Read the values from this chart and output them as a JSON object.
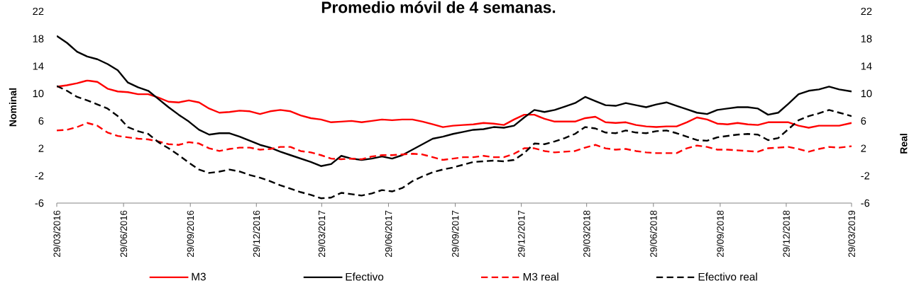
{
  "chart_data": {
    "type": "line",
    "title": "Promedio móvil de 4 semanas.",
    "ylabel": "Nominal",
    "y2label": "Real",
    "x": [
      "2016-03-29",
      "2016-04-12",
      "2016-04-26",
      "2016-05-10",
      "2016-05-24",
      "2016-06-07",
      "2016-06-21",
      "2016-07-05",
      "2016-07-19",
      "2016-08-02",
      "2016-08-16",
      "2016-08-30",
      "2016-09-13",
      "2016-09-27",
      "2016-10-11",
      "2016-10-25",
      "2016-11-08",
      "2016-11-22",
      "2016-12-06",
      "2016-12-20",
      "2017-01-03",
      "2017-01-17",
      "2017-01-31",
      "2017-02-14",
      "2017-02-28",
      "2017-03-14",
      "2017-03-28",
      "2017-04-11",
      "2017-04-25",
      "2017-05-09",
      "2017-05-23",
      "2017-06-06",
      "2017-06-20",
      "2017-07-04",
      "2017-07-18",
      "2017-08-01",
      "2017-08-15",
      "2017-08-29",
      "2017-09-12",
      "2017-09-26",
      "2017-10-10",
      "2017-10-24",
      "2017-11-07",
      "2017-11-21",
      "2017-12-05",
      "2017-12-19",
      "2018-01-02",
      "2018-01-16",
      "2018-01-30",
      "2018-02-13",
      "2018-02-27",
      "2018-03-13",
      "2018-03-27",
      "2018-04-10",
      "2018-04-24",
      "2018-05-08",
      "2018-05-22",
      "2018-06-05",
      "2018-06-19",
      "2018-07-03",
      "2018-07-17",
      "2018-07-31",
      "2018-08-14",
      "2018-08-28",
      "2018-09-11",
      "2018-09-25",
      "2018-10-09",
      "2018-10-23",
      "2018-11-06",
      "2018-11-20",
      "2018-12-04",
      "2018-12-18",
      "2019-01-01",
      "2019-01-15",
      "2019-01-29",
      "2019-02-12",
      "2019-02-26",
      "2019-03-12",
      "2019-03-29"
    ],
    "xlim": [
      "2016-03-29",
      "2019-03-29"
    ],
    "xticks": [
      {
        "value": "2016-03-29",
        "label": "29/03/2016"
      },
      {
        "value": "2016-06-29",
        "label": "29/06/2016"
      },
      {
        "value": "2016-09-29",
        "label": "29/09/2016"
      },
      {
        "value": "2016-12-29",
        "label": "29/12/2016"
      },
      {
        "value": "2017-03-29",
        "label": "29/03/2017"
      },
      {
        "value": "2017-06-29",
        "label": "29/06/2017"
      },
      {
        "value": "2017-09-29",
        "label": "29/09/2017"
      },
      {
        "value": "2017-12-29",
        "label": "29/12/2017"
      },
      {
        "value": "2018-03-29",
        "label": "29/03/2018"
      },
      {
        "value": "2018-06-29",
        "label": "29/06/2018"
      },
      {
        "value": "2018-09-29",
        "label": "29/09/2018"
      },
      {
        "value": "2018-12-29",
        "label": "29/12/2018"
      },
      {
        "value": "2019-03-29",
        "label": "29/03/2019"
      }
    ],
    "ylim": [
      -6,
      22
    ],
    "yticks": [
      -6,
      -2,
      2,
      6,
      10,
      14,
      18,
      22
    ],
    "y2lim": [
      -6,
      22
    ],
    "y2ticks": [
      -6,
      -2,
      2,
      6,
      10,
      14,
      18,
      22
    ],
    "legend": "bottom",
    "series": [
      {
        "name": "M3",
        "color": "#ff0000",
        "line_style": "solid",
        "values": [
          11.0,
          11.2,
          11.5,
          11.9,
          11.7,
          10.7,
          10.3,
          10.2,
          9.9,
          9.9,
          9.4,
          8.8,
          8.7,
          9.0,
          8.7,
          7.8,
          7.2,
          7.3,
          7.5,
          7.4,
          7.0,
          7.4,
          7.6,
          7.4,
          6.8,
          6.4,
          6.2,
          5.8,
          5.9,
          6.0,
          5.8,
          6.0,
          6.2,
          6.1,
          6.2,
          6.2,
          5.9,
          5.5,
          5.1,
          5.3,
          5.4,
          5.5,
          5.7,
          5.6,
          5.4,
          6.2,
          6.9,
          6.9,
          6.3,
          5.9,
          5.9,
          5.9,
          6.4,
          6.6,
          5.8,
          5.7,
          5.8,
          5.4,
          5.2,
          5.1,
          5.2,
          5.2,
          5.8,
          6.5,
          6.2,
          5.6,
          5.5,
          5.7,
          5.5,
          5.4,
          5.8,
          5.8,
          5.8,
          5.3,
          5.0,
          5.3,
          5.3,
          5.3,
          5.7
        ]
      },
      {
        "name": "Efectivo",
        "color": "#000000",
        "line_style": "solid",
        "values": [
          18.4,
          17.4,
          16.1,
          15.4,
          15.0,
          14.3,
          13.4,
          11.6,
          10.9,
          10.4,
          9.2,
          8.0,
          6.9,
          5.9,
          4.7,
          4.0,
          4.2,
          4.2,
          3.7,
          3.1,
          2.5,
          2.1,
          1.5,
          1.0,
          0.5,
          0.0,
          -0.6,
          -0.3,
          0.9,
          0.5,
          0.3,
          0.5,
          0.8,
          0.5,
          1.0,
          1.8,
          2.6,
          3.4,
          3.7,
          4.1,
          4.4,
          4.7,
          4.8,
          5.1,
          5.0,
          5.3,
          6.5,
          7.6,
          7.3,
          7.6,
          8.1,
          8.6,
          9.5,
          8.9,
          8.3,
          8.2,
          8.6,
          8.3,
          8.0,
          8.4,
          8.7,
          8.2,
          7.7,
          7.2,
          7.0,
          7.6,
          7.8,
          8.0,
          8.0,
          7.8,
          6.9,
          7.2,
          8.5,
          9.9,
          10.4,
          10.6,
          11.0,
          10.6,
          10.3
        ]
      },
      {
        "name": "M3 real",
        "color": "#ff0000",
        "line_style": "dashed",
        "axis": "y2",
        "values": [
          4.6,
          4.7,
          5.1,
          5.7,
          5.3,
          4.3,
          3.8,
          3.6,
          3.4,
          3.3,
          3.0,
          2.6,
          2.5,
          2.9,
          2.7,
          2.0,
          1.6,
          1.9,
          2.1,
          2.1,
          1.8,
          1.9,
          2.2,
          2.2,
          1.6,
          1.4,
          1.0,
          0.5,
          0.4,
          0.5,
          0.4,
          0.8,
          1.0,
          1.0,
          1.1,
          1.2,
          1.1,
          0.7,
          0.3,
          0.5,
          0.7,
          0.7,
          0.9,
          0.7,
          0.7,
          1.2,
          2.0,
          2.0,
          1.6,
          1.4,
          1.5,
          1.6,
          2.1,
          2.5,
          2.0,
          1.8,
          1.9,
          1.6,
          1.4,
          1.3,
          1.3,
          1.3,
          2.0,
          2.4,
          2.2,
          1.8,
          1.8,
          1.7,
          1.6,
          1.5,
          2.0,
          2.1,
          2.2,
          1.9,
          1.5,
          1.9,
          2.2,
          2.1,
          2.3
        ]
      },
      {
        "name": "Efectivo real",
        "color": "#000000",
        "line_style": "dashed",
        "axis": "y2",
        "values": [
          11.1,
          10.4,
          9.5,
          9.0,
          8.4,
          7.8,
          6.7,
          5.1,
          4.5,
          4.1,
          2.9,
          2.0,
          1.0,
          -0.1,
          -1.1,
          -1.6,
          -1.4,
          -1.1,
          -1.4,
          -1.9,
          -2.3,
          -2.8,
          -3.4,
          -3.9,
          -4.4,
          -4.8,
          -5.3,
          -5.2,
          -4.5,
          -4.7,
          -4.9,
          -4.6,
          -4.1,
          -4.3,
          -3.8,
          -2.8,
          -2.1,
          -1.5,
          -1.1,
          -0.8,
          -0.4,
          0.0,
          0.1,
          0.2,
          0.1,
          0.3,
          1.3,
          2.7,
          2.6,
          3.0,
          3.5,
          4.1,
          5.1,
          4.9,
          4.3,
          4.2,
          4.6,
          4.3,
          4.2,
          4.5,
          4.6,
          4.2,
          3.7,
          3.2,
          3.1,
          3.6,
          3.8,
          4.0,
          4.1,
          4.0,
          3.2,
          3.5,
          4.8,
          6.1,
          6.7,
          7.1,
          7.6,
          7.2,
          6.7
        ]
      }
    ]
  }
}
